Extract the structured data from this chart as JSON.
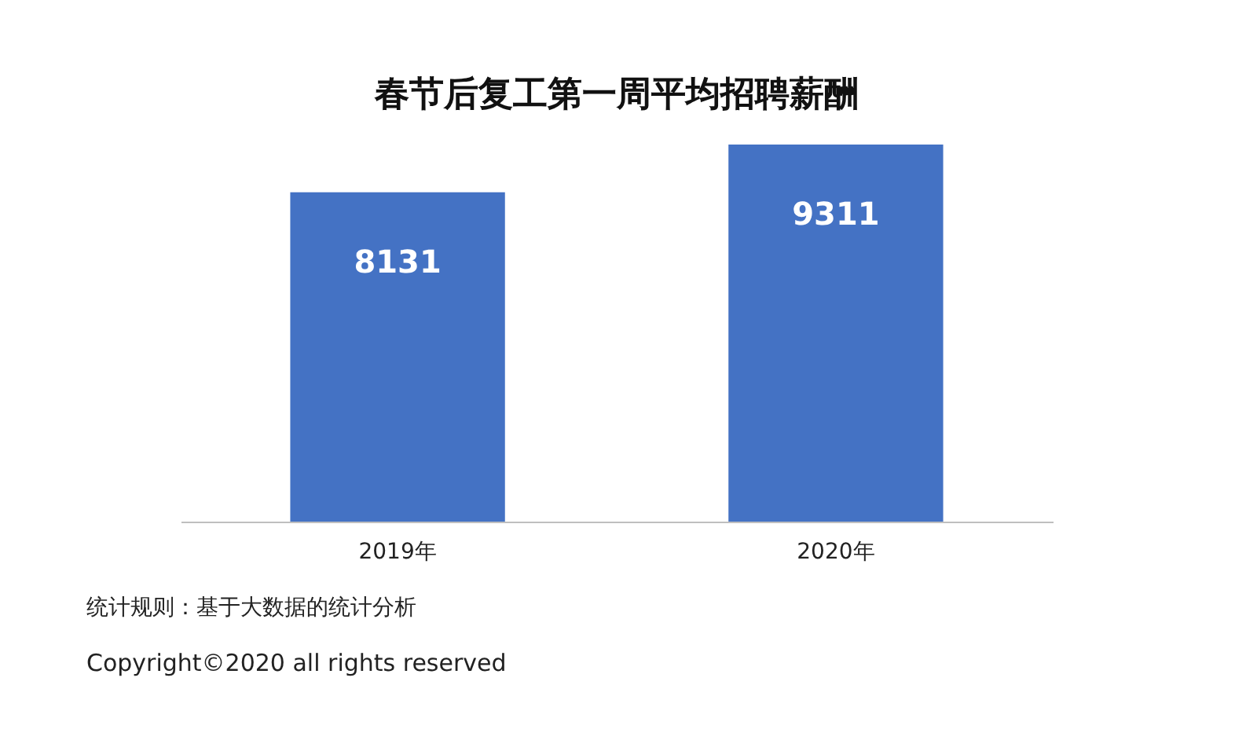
{
  "chart_data": {
    "type": "bar",
    "title": "春节后复工第一周平均招聘薪酬",
    "categories": [
      "2019年",
      "2020年"
    ],
    "values": [
      8131,
      9311
    ],
    "color": "#4472c4",
    "tick_labels": "x",
    "data_labels": true,
    "grid": false,
    "annotations": [
      "统计规则：基于大数据的统计分析",
      "Copyright©2020 all rights reserved"
    ]
  }
}
